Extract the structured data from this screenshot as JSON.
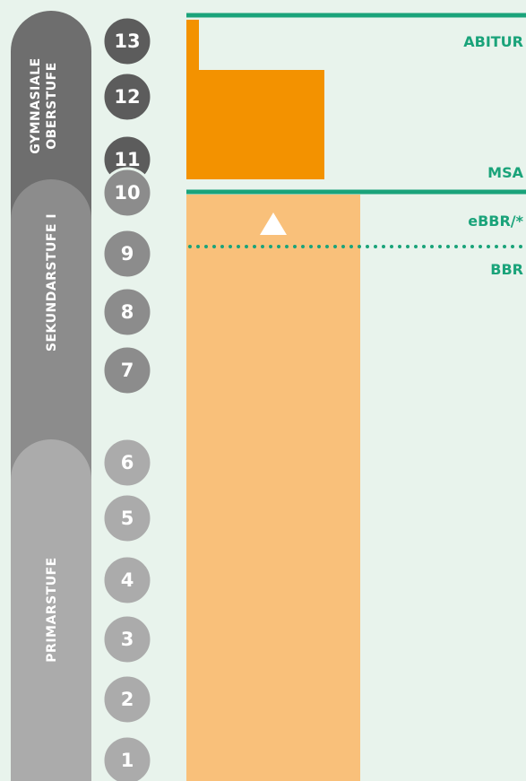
{
  "stages": [
    "GYMNASIALE OBERSTUFE",
    "SEKUNDARSTUFE I",
    "PRIMARSTUFE"
  ],
  "grades": [
    "13",
    "12",
    "11",
    "10",
    "9",
    "8",
    "7",
    "6",
    "5",
    "4",
    "3",
    "2",
    "1"
  ],
  "qualifications": [
    "ABITUR",
    "MSA",
    "eBBR/*",
    "BBR"
  ]
}
